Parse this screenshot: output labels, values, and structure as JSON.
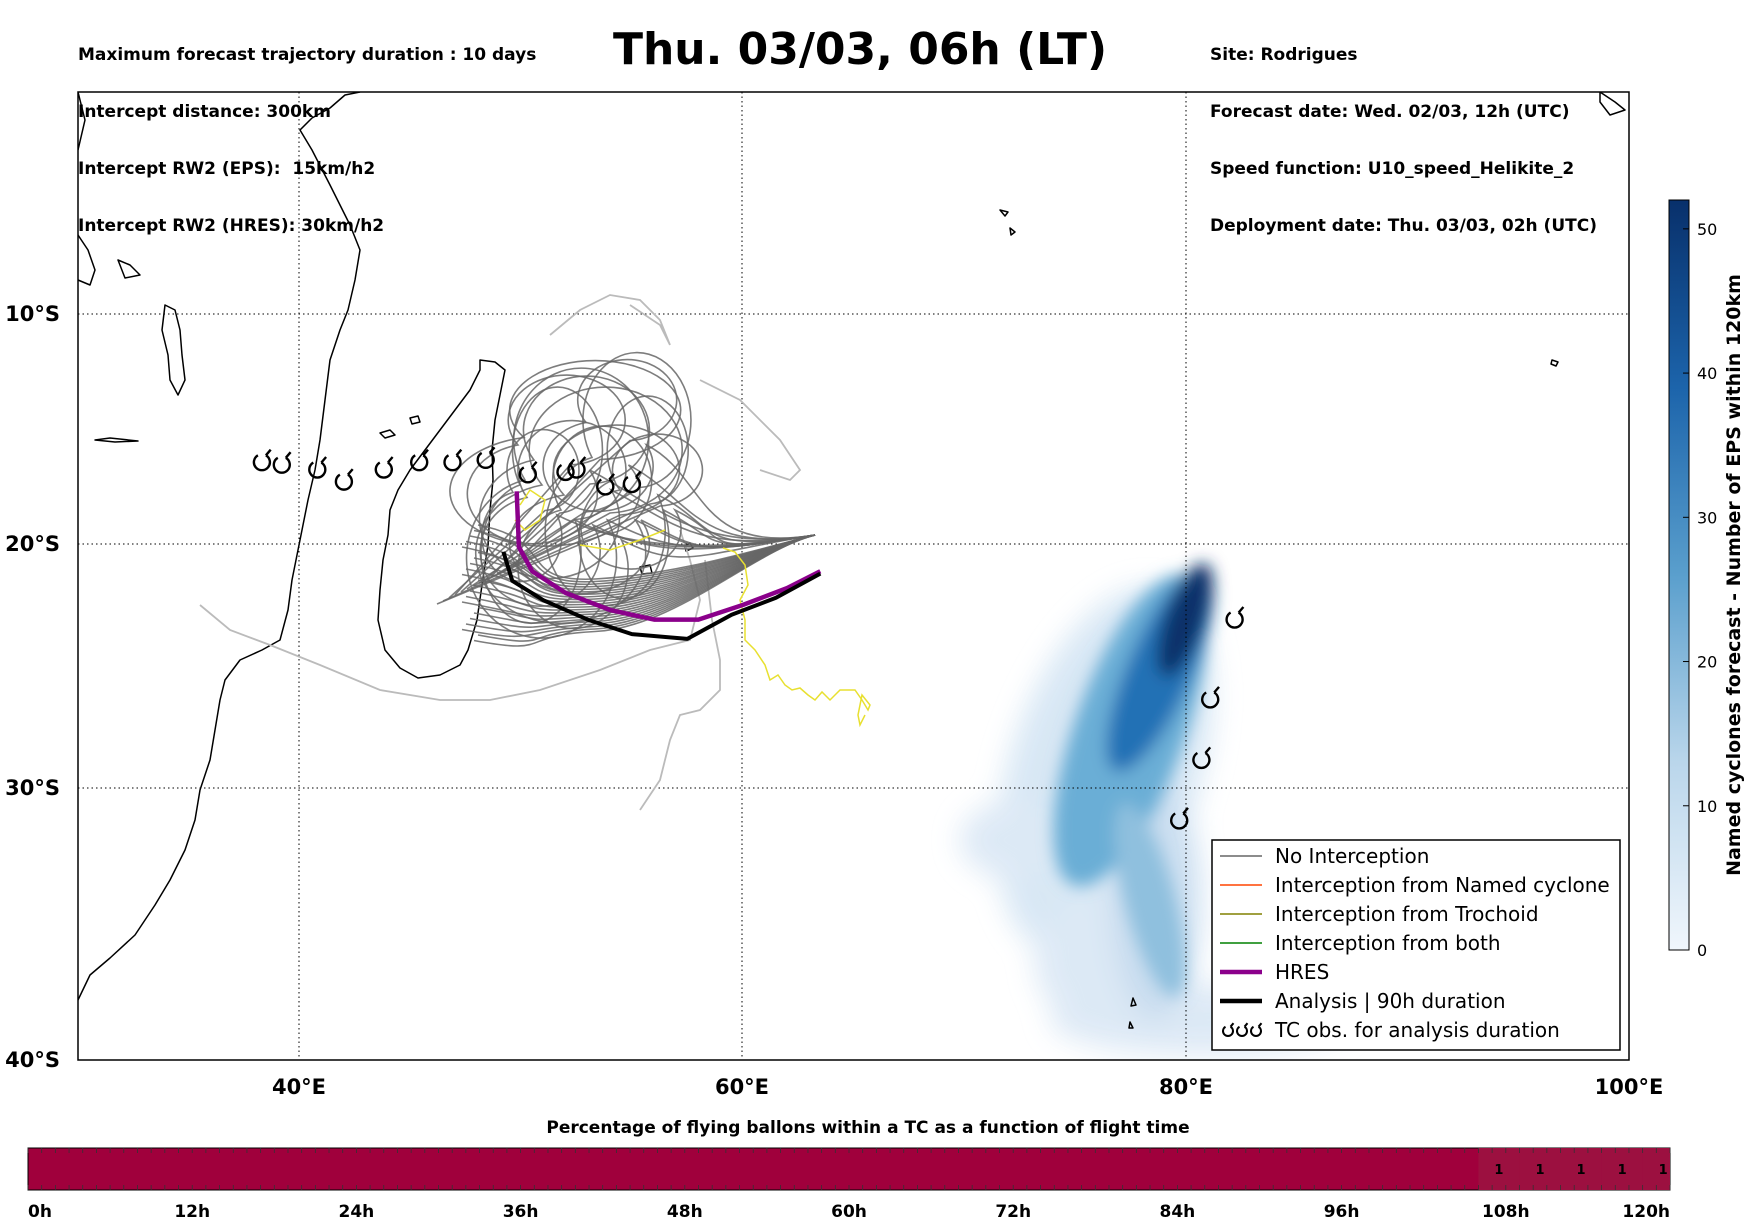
{
  "header": {
    "left_lines": [
      "Maximum forecast trajectory duration : 10 days",
      "Intercept distance: 300km",
      "Intercept RW2 (EPS):  15km/h2",
      "Intercept RW2 (HRES): 30km/h2"
    ],
    "title": "Thu. 03/03, 06h (LT)",
    "right_lines": [
      "Site: Rodrigues",
      "Forecast date: Wed. 02/03, 12h (UTC)",
      "Speed function: U10_speed_Helikite_2",
      "Deployment date: Thu. 03/03, 02h (UTC)"
    ]
  },
  "map": {
    "lon_range": [
      30,
      100
    ],
    "lat_range": [
      -40,
      0
    ],
    "lon_ticks": [
      {
        "value": 40,
        "label": "40°E"
      },
      {
        "value": 60,
        "label": "60°E"
      },
      {
        "value": 80,
        "label": "80°E"
      },
      {
        "value": 100,
        "label": "100°E"
      }
    ],
    "lat_ticks": [
      {
        "value": -10,
        "label": "10°S"
      },
      {
        "value": -20,
        "label": "20°S"
      },
      {
        "value": -30,
        "label": "30°S"
      },
      {
        "value": -40,
        "label": "40°S"
      }
    ],
    "colors": {
      "no_interception": "#666666",
      "named_cyclone": "#ff4500",
      "trochoid": "#808000",
      "both": "#008000",
      "hres": "#8b008b",
      "analysis": "#000000",
      "yellow_track": "#e8e030",
      "light_track": "#bbbbbb"
    },
    "analysis_track": [
      [
        49.2,
        -19.0
      ],
      [
        49.6,
        -20.2
      ],
      [
        51,
        -21.0
      ],
      [
        53,
        -21.8
      ],
      [
        55,
        -22.4
      ],
      [
        57.5,
        -22.6
      ],
      [
        59.5,
        -21.6
      ],
      [
        61.5,
        -20.9
      ],
      [
        63.5,
        -19.9
      ]
    ],
    "hres_track": [
      [
        49.8,
        -16.5
      ],
      [
        49.9,
        -18.8
      ],
      [
        50.5,
        -19.8
      ],
      [
        52,
        -20.7
      ],
      [
        54,
        -21.4
      ],
      [
        56,
        -21.8
      ],
      [
        58,
        -21.8
      ],
      [
        60,
        -21.2
      ],
      [
        62,
        -20.5
      ],
      [
        63.5,
        -19.8
      ]
    ],
    "tc_obs_west": [
      [
        38.3,
        -15.3
      ],
      [
        39.2,
        -15.4
      ],
      [
        40.8,
        -15.6
      ],
      [
        42,
        -16.1
      ],
      [
        43.8,
        -15.6
      ],
      [
        45.4,
        -15.3
      ],
      [
        46.9,
        -15.3
      ],
      [
        48.4,
        -15.2
      ],
      [
        50.3,
        -15.8
      ],
      [
        52,
        -15.7
      ],
      [
        52.5,
        -15.6
      ],
      [
        53.8,
        -16.3
      ],
      [
        55,
        -16.2
      ]
    ],
    "tc_obs_east": [
      [
        82.2,
        -21.8
      ],
      [
        81.1,
        -25.1
      ],
      [
        80.7,
        -27.6
      ],
      [
        79.7,
        -30.1
      ]
    ],
    "legend": [
      {
        "label": "No Interception",
        "style": "no_interception"
      },
      {
        "label": "Interception from Named cyclone",
        "style": "named_cyclone"
      },
      {
        "label": "Interception from Trochoid",
        "style": "trochoid"
      },
      {
        "label": "Interception from both",
        "style": "both"
      },
      {
        "label": "HRES",
        "style": "hres"
      },
      {
        "label": "Analysis | 90h duration",
        "style": "analysis"
      },
      {
        "label": "TC obs. for analysis duration",
        "style": "tc_symbol"
      }
    ]
  },
  "colorbar": {
    "title": "Named cyclones forecast - Number of EPS within 120km",
    "range": [
      0,
      52
    ],
    "ticks": [
      0,
      10,
      20,
      30,
      40,
      50
    ],
    "color_low": "#e8f1fa",
    "color_high": "#08306b"
  },
  "timebar": {
    "title": "Percentage of flying ballons within a TC as a function of flight time",
    "ticks": [
      "0h",
      "12h",
      "24h",
      "36h",
      "48h",
      "60h",
      "72h",
      "84h",
      "96h",
      "108h",
      "120h"
    ],
    "max_hours": 120,
    "base_color": "#a0003c",
    "segment_color": "#9c1040",
    "segments": [
      {
        "start": 106,
        "end": 109,
        "value": "1"
      },
      {
        "start": 109,
        "end": 112,
        "value": "1"
      },
      {
        "start": 112,
        "end": 115,
        "value": "1"
      },
      {
        "start": 115,
        "end": 118,
        "value": "1"
      },
      {
        "start": 118,
        "end": 121,
        "value": "1"
      }
    ]
  }
}
